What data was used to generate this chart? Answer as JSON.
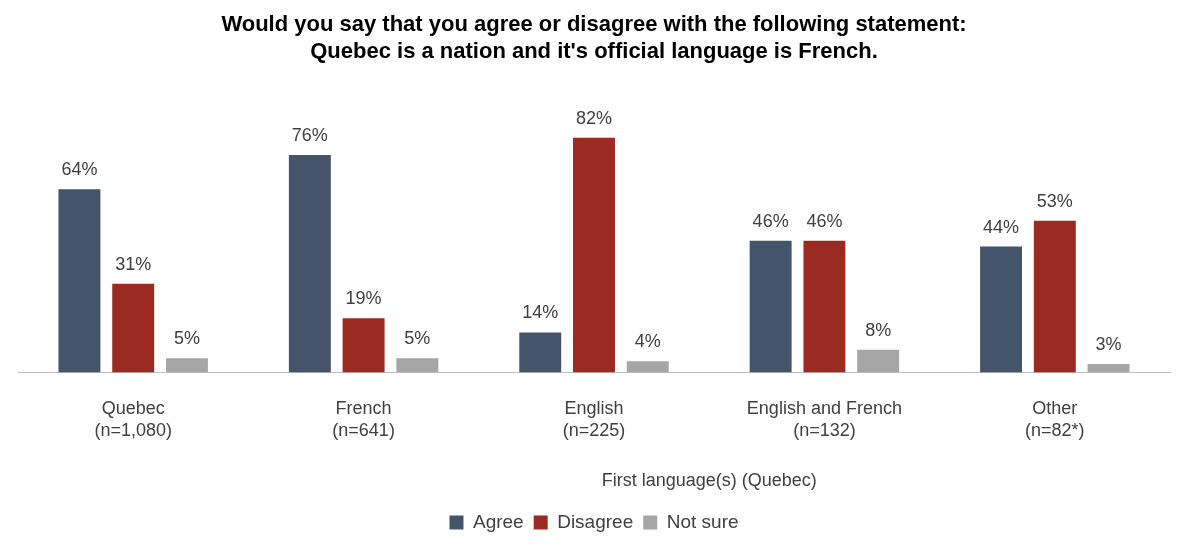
{
  "chart_data": {
    "type": "bar",
    "title": "Would you say that you agree or disagree with the following statement:\nQuebec is a nation and it's official language is French.",
    "categories": [
      "Quebec\n(n=1,080)",
      "French\n(n=641)",
      "English\n(n=225)",
      "English and French\n(n=132)",
      "Other\n(n=82*)"
    ],
    "series": [
      {
        "name": "Agree",
        "color": "#44546a",
        "values": [
          64,
          76,
          14,
          46,
          44
        ],
        "value_labels": [
          "64%",
          "76%",
          "14%",
          "46%",
          "44%"
        ]
      },
      {
        "name": "Disagree",
        "color": "#9b2a22",
        "values": [
          31,
          19,
          82,
          46,
          53
        ],
        "value_labels": [
          "31%",
          "19%",
          "82%",
          "46%",
          "53%"
        ]
      },
      {
        "name": "Not sure",
        "color": "#a6a6a6",
        "values": [
          5,
          5,
          4,
          8,
          3
        ],
        "value_labels": [
          "5%",
          "5%",
          "4%",
          "8%",
          "3%"
        ]
      }
    ],
    "annotations": [
      "First language(s) (Quebec)"
    ],
    "legend": "bottom",
    "grid": false
  }
}
